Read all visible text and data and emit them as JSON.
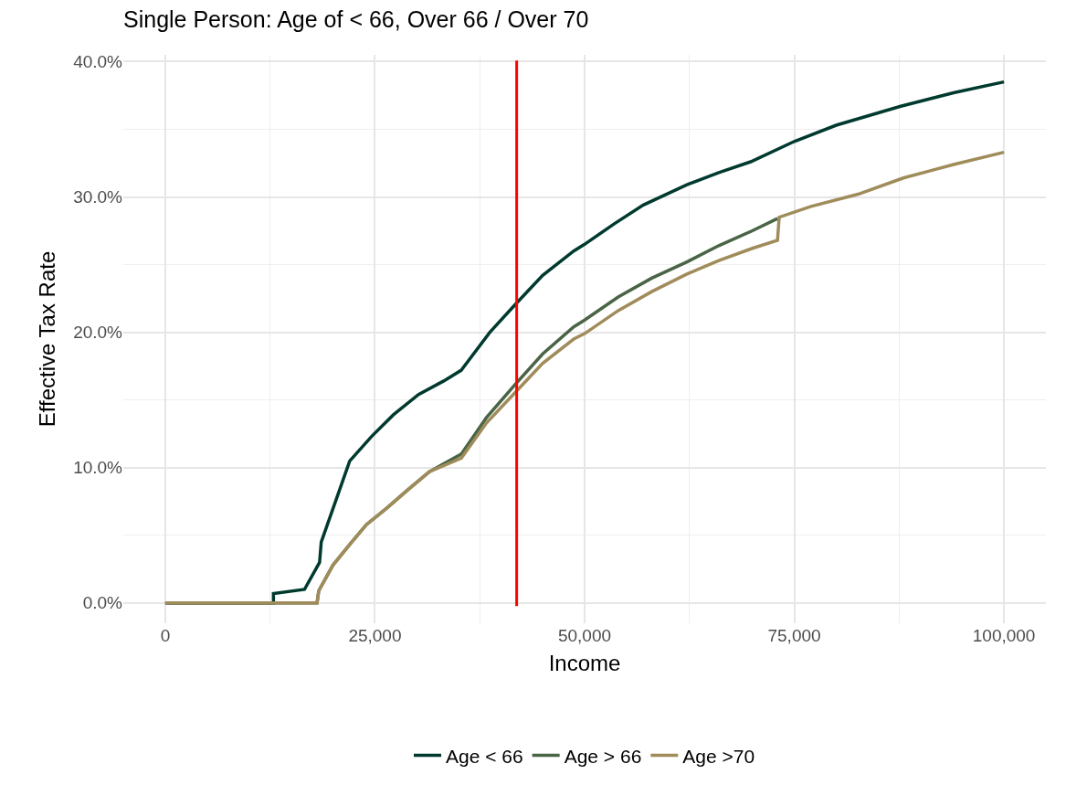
{
  "chart_data": {
    "type": "line",
    "title": "Single Person: Age of < 66, Over 66 / Over 70",
    "xlabel": "Income",
    "ylabel": "Effective Tax Rate",
    "series": [
      {
        "name": "Age < 66",
        "color": "#003a2f",
        "x": [
          0,
          12900,
          12900,
          16600,
          18400,
          18600,
          22000,
          24600,
          27200,
          30200,
          33200,
          35300,
          38700,
          41800,
          45000,
          48700,
          50000,
          53500,
          57000,
          62200,
          66000,
          69800,
          75000,
          80000,
          87700,
          94000,
          100000
        ],
        "values": [
          0,
          0,
          0.7,
          1.0,
          3.0,
          4.5,
          10.5,
          12.3,
          13.9,
          15.4,
          16.4,
          17.2,
          20.0,
          22.1,
          24.2,
          26.0,
          26.5,
          28.0,
          29.4,
          30.9,
          31.8,
          32.6,
          34.1,
          35.3,
          36.7,
          37.7,
          38.5
        ]
      },
      {
        "name": "Age > 66",
        "color": "#4a6446",
        "x": [
          0,
          18100,
          18300,
          20000,
          22100,
          24000,
          26400,
          29000,
          31500,
          35300,
          38300,
          41800,
          45000,
          48700,
          50000,
          54000,
          58000,
          62200,
          66000,
          70000,
          73000
        ],
        "values": [
          0,
          0,
          0.9,
          2.8,
          4.4,
          5.8,
          7.0,
          8.4,
          9.7,
          11.0,
          13.7,
          16.2,
          18.4,
          20.4,
          20.9,
          22.6,
          24.0,
          25.2,
          26.4,
          27.5,
          28.4
        ]
      },
      {
        "name": "Age >70",
        "color": "#a08c5a",
        "x": [
          0,
          18100,
          18300,
          20000,
          22100,
          24000,
          26400,
          29000,
          31500,
          35300,
          38300,
          41800,
          45000,
          48700,
          50000,
          54000,
          58000,
          62200,
          66000,
          70000,
          73000,
          73200,
          77000,
          82600,
          88000,
          94000,
          100000
        ],
        "values": [
          0,
          0,
          0.9,
          2.8,
          4.4,
          5.8,
          7.0,
          8.4,
          9.7,
          10.7,
          13.3,
          15.6,
          17.7,
          19.5,
          19.9,
          21.6,
          23.0,
          24.3,
          25.3,
          26.2,
          26.8,
          28.5,
          29.3,
          30.2,
          31.4,
          32.4,
          33.3
        ]
      }
    ],
    "xlim": [
      -5000,
      105000
    ],
    "xticks": [
      {
        "value": 0,
        "label": "0"
      },
      {
        "value": 12500,
        "label": null
      },
      {
        "value": 25000,
        "label": "25,000"
      },
      {
        "value": 37500,
        "label": null
      },
      {
        "value": 50000,
        "label": "50,000"
      },
      {
        "value": 62500,
        "label": null
      },
      {
        "value": 75000,
        "label": "75,000"
      },
      {
        "value": 87500,
        "label": null
      },
      {
        "value": 100000,
        "label": "100,000"
      }
    ],
    "ylim": [
      -1.5,
      40.5
    ],
    "yticks": [
      {
        "value": 0,
        "label": "0.0%"
      },
      {
        "value": 5,
        "label": null
      },
      {
        "value": 10,
        "label": "10.0%"
      },
      {
        "value": 15,
        "label": null
      },
      {
        "value": 20,
        "label": "20.0%"
      },
      {
        "value": 25,
        "label": null
      },
      {
        "value": 30,
        "label": "30.0%"
      },
      {
        "value": 35,
        "label": null
      },
      {
        "value": 40,
        "label": "40.0%"
      }
    ],
    "ref_lines": [
      {
        "axis": "x",
        "value": 41900,
        "color": "#ff0000",
        "line_style": "solid"
      }
    ],
    "grid": true,
    "legend": "bottom",
    "marker": "none",
    "line_style": "solid"
  }
}
